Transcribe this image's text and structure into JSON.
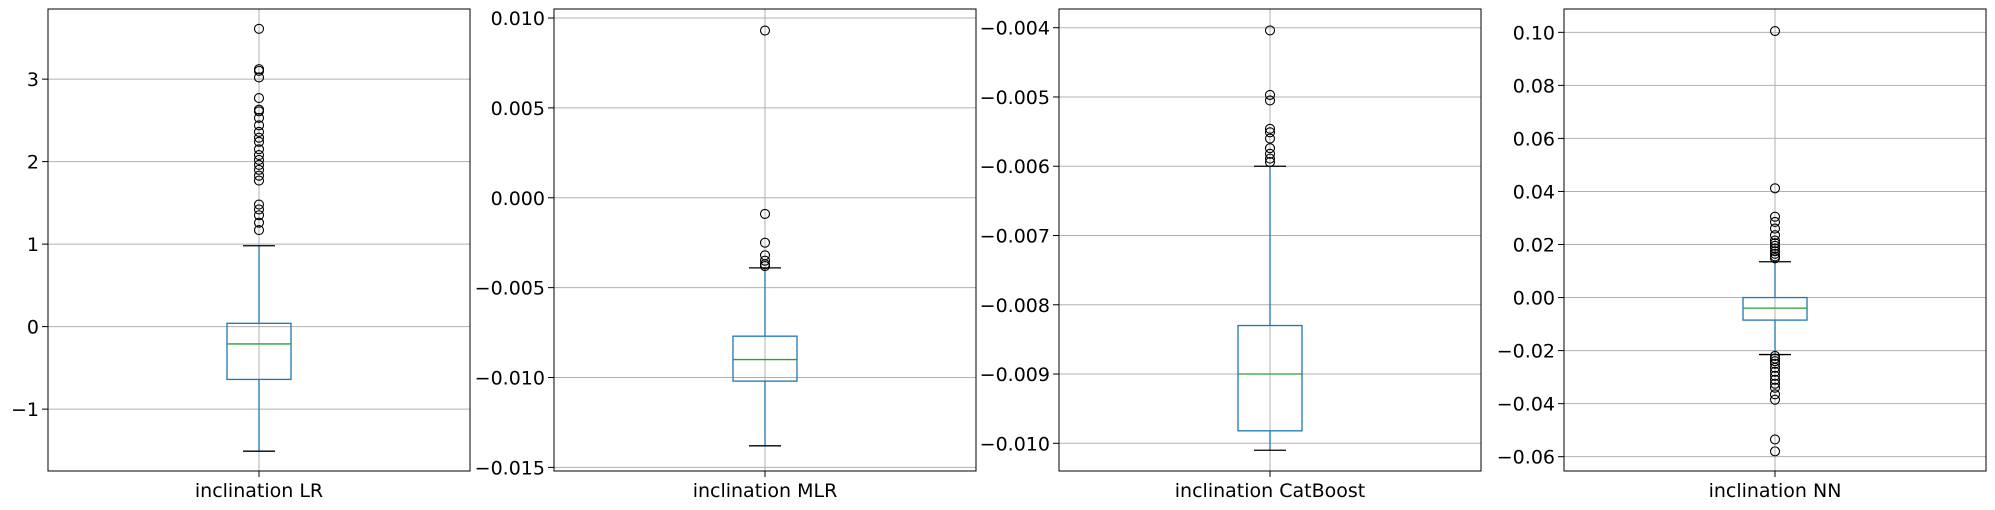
{
  "chart_data": [
    {
      "type": "box",
      "categories": [
        "inclination LR"
      ],
      "ylim": [
        -1.75,
        3.85
      ],
      "yticks": [
        -1,
        0,
        1,
        2,
        3
      ],
      "ytick_labels": [
        "−1",
        "0",
        "1",
        "2",
        "3"
      ],
      "grid": true,
      "box": {
        "whisker_low": -1.51,
        "q1": -0.64,
        "median": -0.21,
        "q3": 0.04,
        "whisker_high": 0.98
      },
      "outliers": [
        3.61,
        3.12,
        3.1,
        3.02,
        2.77,
        2.63,
        2.61,
        2.53,
        2.44,
        2.36,
        2.29,
        2.24,
        2.15,
        2.08,
        2.02,
        1.96,
        1.9,
        1.83,
        1.77,
        1.48,
        1.42,
        1.35,
        1.26,
        1.17
      ]
    },
    {
      "type": "box",
      "categories": [
        "inclination MLR"
      ],
      "ylim": [
        -0.0152,
        0.0105
      ],
      "yticks": [
        -0.015,
        -0.01,
        -0.005,
        0.0,
        0.005,
        0.01
      ],
      "ytick_labels": [
        "−0.015",
        "−0.010",
        "−0.005",
        "0.000",
        "0.005",
        "0.010"
      ],
      "grid": true,
      "box": {
        "whisker_low": -0.0138,
        "q1": -0.0102,
        "median": -0.009,
        "q3": -0.0077,
        "whisker_high": -0.0039
      },
      "outliers": [
        0.0093,
        -0.0009,
        -0.0025,
        -0.0032,
        -0.0035,
        -0.0037,
        -0.0038
      ]
    },
    {
      "type": "box",
      "categories": [
        "inclination CatBoost"
      ],
      "ylim": [
        -0.0104,
        -0.00373
      ],
      "yticks": [
        -0.01,
        -0.009,
        -0.008,
        -0.007,
        -0.006,
        -0.005,
        -0.004
      ],
      "ytick_labels": [
        "−0.010",
        "−0.009",
        "−0.008",
        "−0.007",
        "−0.006",
        "−0.005",
        "−0.004"
      ],
      "grid": true,
      "box": {
        "whisker_low": -0.0101,
        "q1": -0.00982,
        "median": -0.009,
        "q3": -0.0083,
        "whisker_high": -0.006
      },
      "outliers": [
        -0.00404,
        -0.00497,
        -0.00505,
        -0.00546,
        -0.00551,
        -0.0056,
        -0.00574,
        -0.00582,
        -0.00589,
        -0.00594
      ]
    },
    {
      "type": "box",
      "categories": [
        "inclination NN"
      ],
      "ylim": [
        -0.0654,
        0.1088
      ],
      "yticks": [
        -0.06,
        -0.04,
        -0.02,
        0.0,
        0.02,
        0.04,
        0.06,
        0.08,
        0.1
      ],
      "ytick_labels": [
        "−0.06",
        "−0.04",
        "−0.02",
        "0.00",
        "0.02",
        "0.04",
        "0.06",
        "0.08",
        "0.10"
      ],
      "grid": true,
      "box": {
        "whisker_low": -0.0215,
        "q1": -0.0085,
        "median": -0.004,
        "q3": 0.0,
        "whisker_high": 0.0135
      },
      "outliers": [
        0.1005,
        0.0412,
        0.0305,
        0.0285,
        0.026,
        0.0235,
        0.0215,
        0.0205,
        0.0195,
        0.0185,
        0.0175,
        0.0165,
        0.0155,
        0.0148,
        -0.022,
        -0.023,
        -0.024,
        -0.025,
        -0.0265,
        -0.028,
        -0.0295,
        -0.031,
        -0.0325,
        -0.034,
        -0.0365,
        -0.0385,
        -0.0535,
        -0.058
      ]
    }
  ]
}
